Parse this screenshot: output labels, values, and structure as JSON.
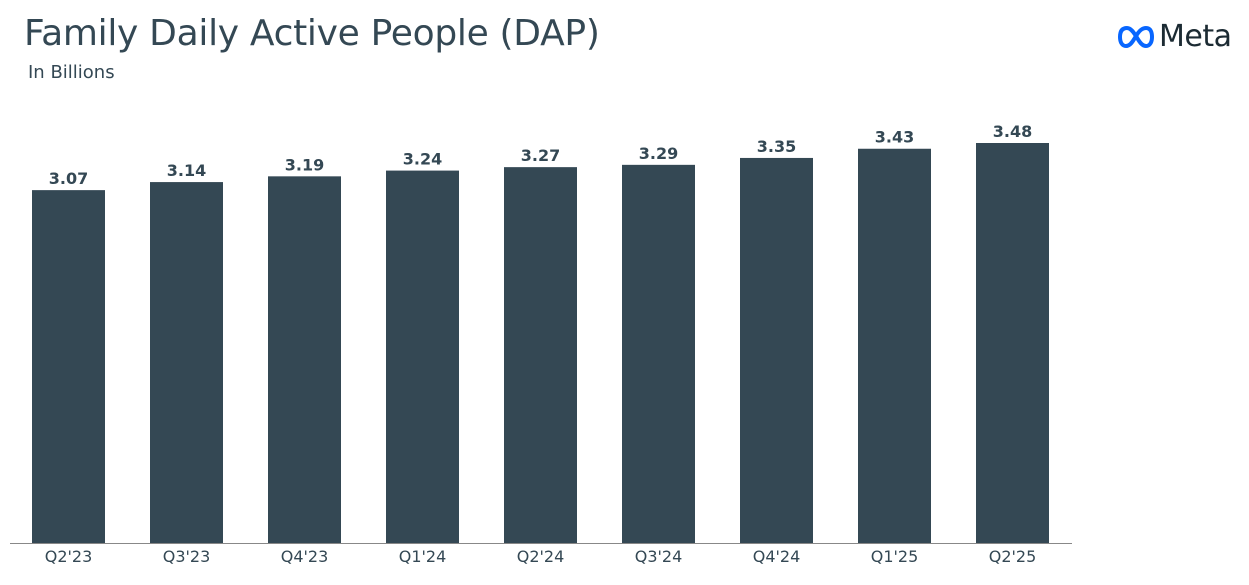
{
  "header": {
    "title": "Family Daily Active People (DAP)",
    "subtitle": "In Billions"
  },
  "brand": {
    "name": "Meta",
    "logo_icon": "meta-infinity-logo",
    "logo_color": "#0866ff"
  },
  "colors": {
    "bar": "#344854",
    "text": "#344854",
    "axis": "#888888"
  },
  "chart_data": {
    "type": "bar",
    "title": "Family Daily Active People (DAP)",
    "subtitle": "In Billions",
    "categories": [
      "Q2'23",
      "Q3'23",
      "Q4'23",
      "Q1'24",
      "Q2'24",
      "Q3'24",
      "Q4'24",
      "Q1'25",
      "Q2'25"
    ],
    "values": [
      3.07,
      3.14,
      3.19,
      3.24,
      3.27,
      3.29,
      3.35,
      3.43,
      3.48
    ],
    "value_labels": [
      "3.07",
      "3.14",
      "3.19",
      "3.24",
      "3.27",
      "3.29",
      "3.35",
      "3.43",
      "3.48"
    ],
    "xlabel": "",
    "ylabel": "",
    "ylim": [
      0,
      3.48
    ],
    "grid": false,
    "legend": "none"
  }
}
